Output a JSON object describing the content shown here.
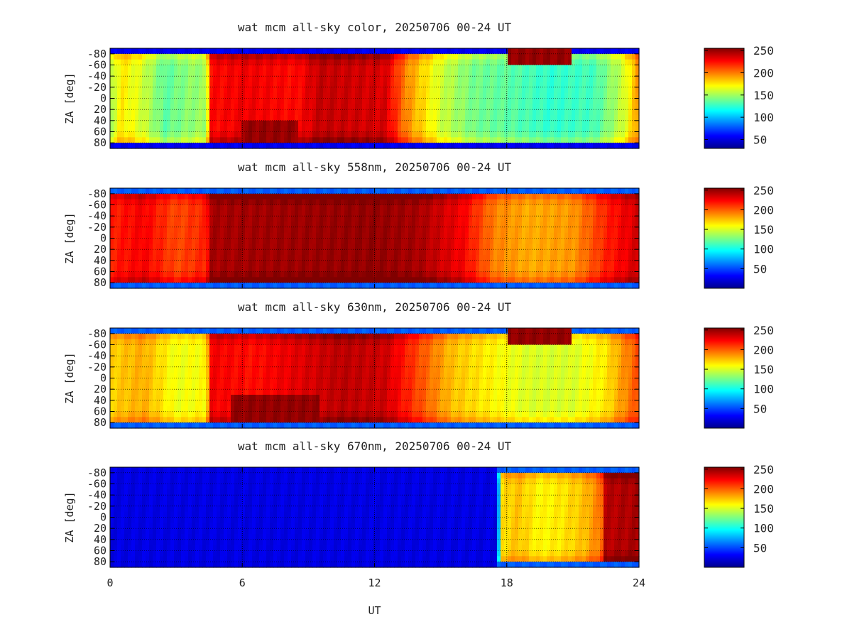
{
  "chart_data": [
    {
      "type": "heatmap",
      "title": "wat mcm all-sky color, 20250706 00-24 UT",
      "ylabel": "ZA [deg]",
      "xlabel": "",
      "xlim": [
        0,
        24
      ],
      "ylim": [
        -90,
        90
      ],
      "y_tick_labels": [
        "-80",
        "-60",
        "-40",
        "-20",
        "0",
        "20",
        "40",
        "60",
        "80"
      ],
      "x_grid_lines": [
        6,
        12,
        18
      ],
      "grid": true,
      "colorbar": {
        "ticks": [
          "250",
          "200",
          "150",
          "100",
          "50"
        ],
        "range": [
          30,
          255
        ],
        "colormap": "jet"
      },
      "time_profile": [
        [
          0,
          150
        ],
        [
          0.5,
          175
        ],
        [
          1.5,
          160
        ],
        [
          2.5,
          135
        ],
        [
          3.5,
          145
        ],
        [
          4.4,
          150
        ],
        [
          4.5,
          225
        ],
        [
          6.2,
          230
        ],
        [
          8.5,
          225
        ],
        [
          9.5,
          240
        ],
        [
          12.5,
          235
        ],
        [
          13.5,
          195
        ],
        [
          15,
          160
        ],
        [
          16.5,
          140
        ],
        [
          18,
          135
        ],
        [
          20,
          125
        ],
        [
          22,
          130
        ],
        [
          23.3,
          160
        ],
        [
          24,
          195
        ]
      ],
      "features": [
        {
          "t0": 6.0,
          "t1": 8.5,
          "za0": 40,
          "za1": 75,
          "value": 250
        },
        {
          "t0": 18.0,
          "t1": 21.0,
          "za0": -90,
          "za1": -65,
          "value": 250
        }
      ]
    },
    {
      "type": "heatmap",
      "title": "wat mcm all-sky 558nm, 20250706 00-24 UT",
      "ylabel": "ZA [deg]",
      "xlabel": "",
      "xlim": [
        0,
        24
      ],
      "ylim": [
        -90,
        90
      ],
      "y_tick_labels": [
        "-80",
        "-60",
        "-40",
        "-20",
        "0",
        "20",
        "40",
        "60",
        "80"
      ],
      "x_grid_lines": [
        6,
        12,
        18
      ],
      "grid": true,
      "colorbar": {
        "ticks": [
          "250",
          "200",
          "150",
          "100",
          "50"
        ],
        "range": [
          0,
          255
        ],
        "colormap": "jet"
      },
      "time_profile": [
        [
          0,
          215
        ],
        [
          1.5,
          225
        ],
        [
          3,
          205
        ],
        [
          4.4,
          215
        ],
        [
          4.5,
          245
        ],
        [
          12,
          250
        ],
        [
          14,
          245
        ],
        [
          16,
          225
        ],
        [
          17.5,
          190
        ],
        [
          19,
          180
        ],
        [
          21,
          185
        ],
        [
          22.5,
          215
        ],
        [
          24,
          235
        ]
      ],
      "features": []
    },
    {
      "type": "heatmap",
      "title": "wat mcm all-sky 630nm, 20250706 00-24 UT",
      "ylabel": "ZA [deg]",
      "xlabel": "",
      "xlim": [
        0,
        24
      ],
      "ylim": [
        -90,
        90
      ],
      "y_tick_labels": [
        "-80",
        "-60",
        "-40",
        "-20",
        "0",
        "20",
        "40",
        "60",
        "80"
      ],
      "x_grid_lines": [
        6,
        12,
        18
      ],
      "grid": true,
      "colorbar": {
        "ticks": [
          "250",
          "200",
          "150",
          "100",
          "50"
        ],
        "range": [
          0,
          255
        ],
        "colormap": "jet"
      },
      "time_profile": [
        [
          0,
          170
        ],
        [
          1.5,
          180
        ],
        [
          3,
          155
        ],
        [
          4.4,
          160
        ],
        [
          4.5,
          225
        ],
        [
          6.5,
          220
        ],
        [
          8.5,
          230
        ],
        [
          10.5,
          240
        ],
        [
          12.5,
          235
        ],
        [
          14,
          205
        ],
        [
          15.5,
          175
        ],
        [
          17.5,
          160
        ],
        [
          19,
          150
        ],
        [
          21,
          150
        ],
        [
          22.5,
          165
        ],
        [
          24,
          205
        ]
      ],
      "features": [
        {
          "t0": 5.5,
          "t1": 9.5,
          "za0": 35,
          "za1": 75,
          "value": 250
        },
        {
          "t0": 18.0,
          "t1": 21.0,
          "za0": -90,
          "za1": -65,
          "value": 250
        }
      ]
    },
    {
      "type": "heatmap",
      "title": "wat mcm all-sky 670nm, 20250706 00-24 UT",
      "ylabel": "ZA [deg]",
      "xlabel": "UT",
      "xlim": [
        0,
        24
      ],
      "ylim": [
        -90,
        90
      ],
      "x_tick_labels": [
        "0",
        "6",
        "12",
        "18",
        "24"
      ],
      "y_tick_labels": [
        "-80",
        "-60",
        "-40",
        "-20",
        "0",
        "20",
        "40",
        "60",
        "80"
      ],
      "x_grid_lines": [
        6,
        12,
        18
      ],
      "grid": true,
      "colorbar": {
        "ticks": [
          "250",
          "200",
          "150",
          "100",
          "50"
        ],
        "range": [
          0,
          255
        ],
        "colormap": "jet"
      },
      "time_profile": [
        [
          0,
          25
        ],
        [
          17.6,
          25
        ],
        [
          17.7,
          165
        ],
        [
          18.5,
          175
        ],
        [
          19.5,
          160
        ],
        [
          20.5,
          165
        ],
        [
          21.5,
          175
        ],
        [
          22.3,
          195
        ],
        [
          22.4,
          240
        ],
        [
          24,
          245
        ]
      ],
      "features": []
    }
  ]
}
